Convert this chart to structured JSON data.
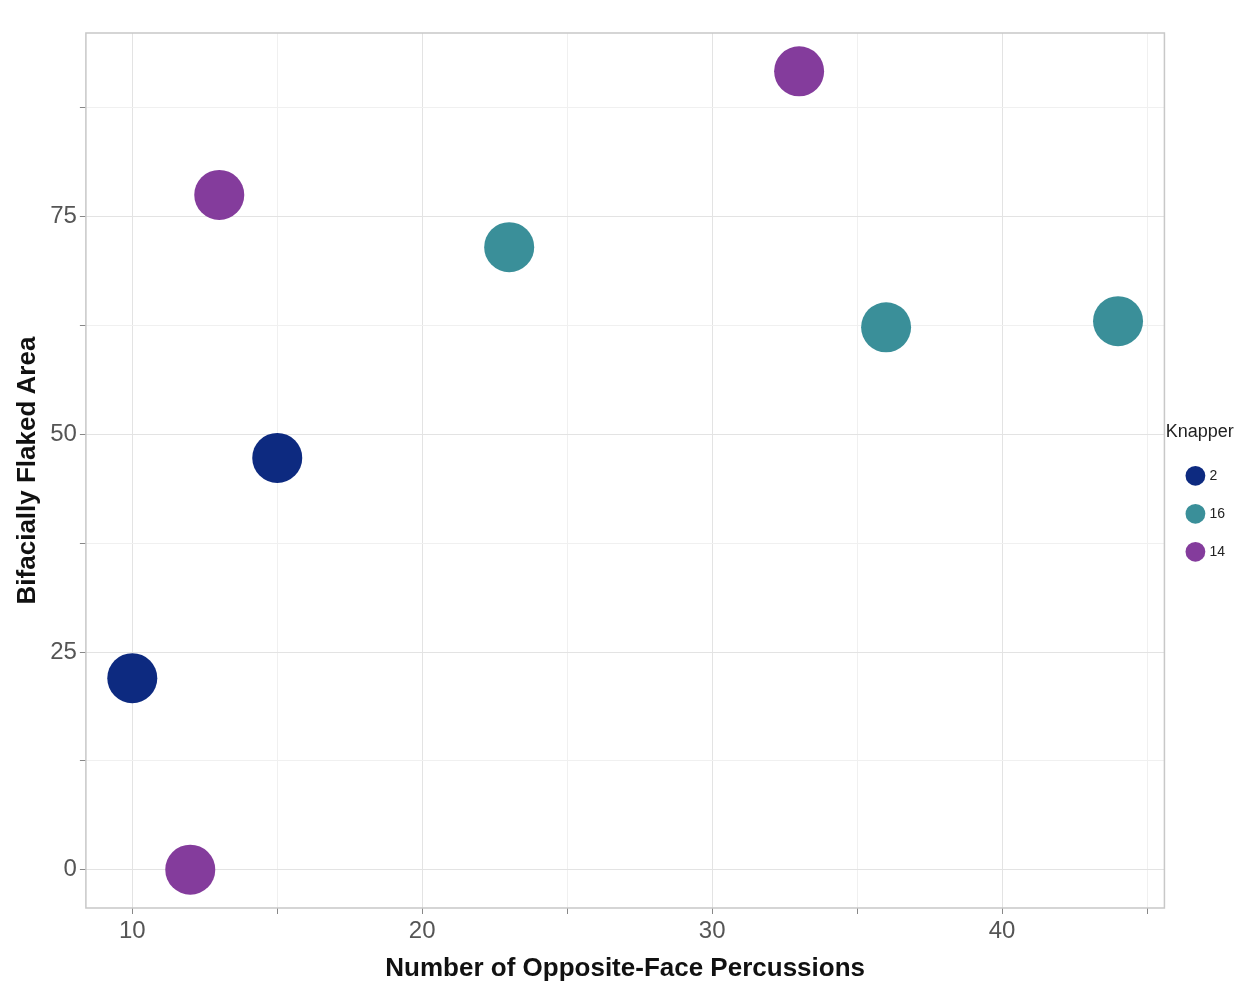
{
  "chart_data": {
    "type": "scatter",
    "xlabel": "Number of Opposite-Face Percussions",
    "ylabel": "Bifacially Flaked Area",
    "legend_title": "Knapper",
    "series": [
      {
        "name": "2",
        "color": "#0d2a80",
        "x": [
          10,
          15
        ],
        "values": [
          22,
          47.3
        ]
      },
      {
        "name": "16",
        "color": "#3a8f99",
        "x": [
          23,
          36,
          44
        ],
        "values": [
          71.5,
          62.3,
          63
        ]
      },
      {
        "name": "14",
        "color": "#843c9c",
        "x": [
          12,
          13,
          33
        ],
        "values": [
          0,
          77.5,
          91.7
        ]
      }
    ],
    "xlim": [
      8.4,
      45.6
    ],
    "xticks": [
      10,
      {
        "value": 15,
        "label": null
      },
      20,
      {
        "value": 25,
        "label": null
      },
      30,
      {
        "value": 35,
        "label": null
      },
      40,
      {
        "value": 45,
        "label": null
      }
    ],
    "ylim": [
      -4.4,
      96.1
    ],
    "yticks": [
      0,
      {
        "value": 12.5,
        "label": null
      },
      25,
      {
        "value": 37.5,
        "label": null
      },
      50,
      {
        "value": 62.5,
        "label": null
      },
      75,
      {
        "value": 87.5,
        "label": null
      }
    ],
    "grid": true,
    "legend": "right",
    "marker": "circle"
  }
}
